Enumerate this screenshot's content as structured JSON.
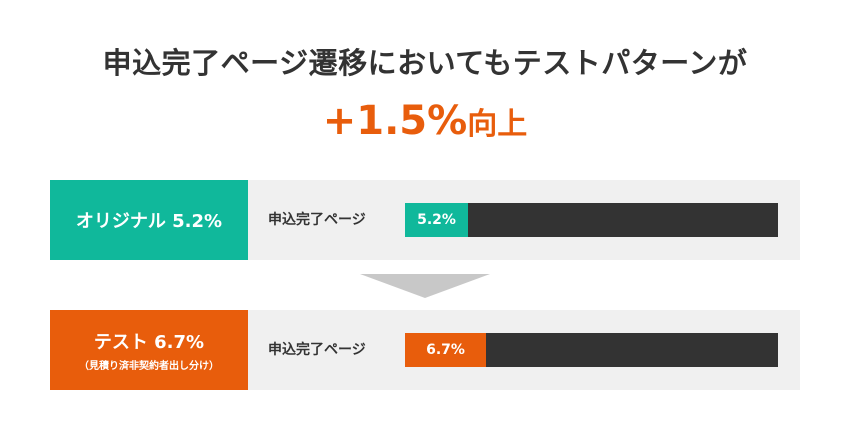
{
  "headline": "申込完了ページ遷移においてもテストパターンが",
  "uplift": {
    "value": "+1.5%",
    "suffix": "向上"
  },
  "colors": {
    "original": "#10b89b",
    "test": "#e85d0c",
    "track": "#333333",
    "panel": "#f0f0f0",
    "arrow": "#c8c8c8"
  },
  "chart_data": {
    "type": "bar",
    "orientation": "horizontal",
    "categories": [
      "申込完了ページ",
      "申込完了ページ"
    ],
    "series": [
      {
        "name": "オリジナル",
        "value": 5.2,
        "value_label": "5.2%",
        "badge_label": "オリジナル 5.2%",
        "badge_sub": "",
        "color": "#10b89b"
      },
      {
        "name": "テスト",
        "value": 6.7,
        "value_label": "6.7%",
        "badge_label": "テスト 6.7%",
        "badge_sub": "（見積り済非契約者出し分け）",
        "color": "#e85d0c"
      }
    ],
    "xlim": [
      0,
      31
    ],
    "grid": false
  }
}
